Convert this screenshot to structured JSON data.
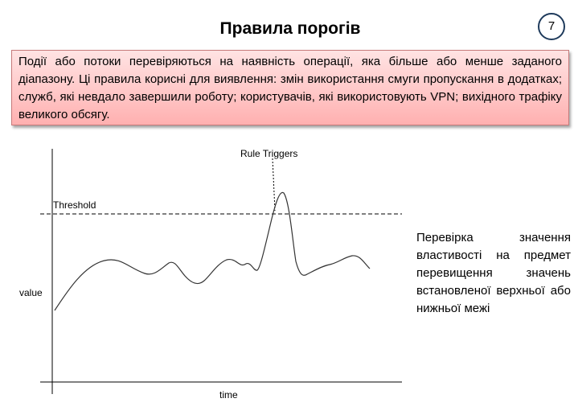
{
  "slide": {
    "title": "Правила порогів",
    "page_number": "7"
  },
  "info_box": {
    "text": "Події або потоки перевіряються на наявність операції, яка більше або менше заданого діапазону. Ці правила корисні для виявлення: змін використання смуги пропускання в додатках; служб, які невдало завершили роботу; користувачів, які використовують VPN; вихідного трафіку великого обсягу."
  },
  "diagram": {
    "threshold_label": "Threshold",
    "trigger_label": "Rule Triggers",
    "y_axis_label": "value",
    "x_axis_label": "time"
  },
  "side_text": "Перевірка значення властивості на предмет перевищення значень встановленої верхньої або нижньої межі",
  "colors": {
    "info_box_fill": "#ffc8c8",
    "info_box_border": "#c77a7a",
    "page_number_border": "#1f3b5c"
  }
}
